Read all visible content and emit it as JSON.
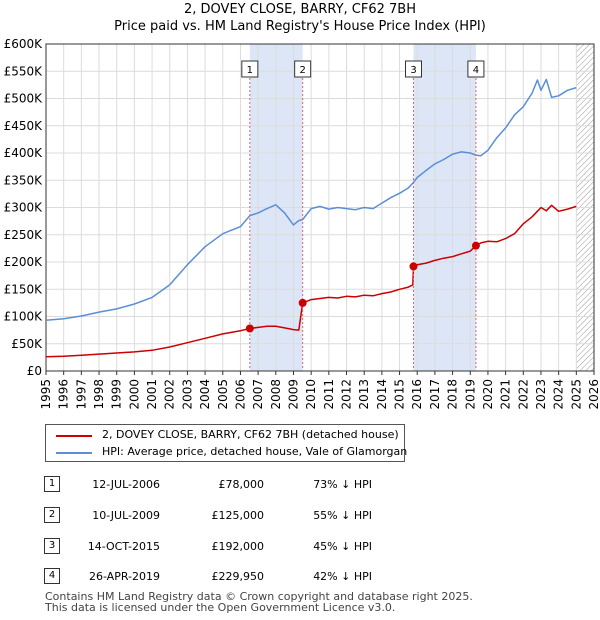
{
  "chart_data": {
    "type": "line",
    "title": "2, DOVEY CLOSE, BARRY, CF62 7BH",
    "subtitle": "Price paid vs. HM Land Registry's House Price Index (HPI)",
    "xlabel": "",
    "ylabel": "",
    "xlim": [
      1995,
      2026
    ],
    "ylim": [
      0,
      600000
    ],
    "x_ticks": [
      "1995",
      "1996",
      "1997",
      "1998",
      "1999",
      "2000",
      "2001",
      "2002",
      "2003",
      "2004",
      "2005",
      "2006",
      "2007",
      "2008",
      "2009",
      "2010",
      "2011",
      "2012",
      "2013",
      "2014",
      "2015",
      "2016",
      "2017",
      "2018",
      "2019",
      "2020",
      "2021",
      "2022",
      "2023",
      "2024",
      "2025",
      "2026"
    ],
    "y_ticks": [
      {
        "value": 0,
        "label": "£0"
      },
      {
        "value": 50000,
        "label": "£50K"
      },
      {
        "value": 100000,
        "label": "£100K"
      },
      {
        "value": 150000,
        "label": "£150K"
      },
      {
        "value": 200000,
        "label": "£200K"
      },
      {
        "value": 250000,
        "label": "£250K"
      },
      {
        "value": 300000,
        "label": "£300K"
      },
      {
        "value": 350000,
        "label": "£350K"
      },
      {
        "value": 400000,
        "label": "£400K"
      },
      {
        "value": 450000,
        "label": "£450K"
      },
      {
        "value": 500000,
        "label": "£500K"
      },
      {
        "value": 550000,
        "label": "£550K"
      },
      {
        "value": 600000,
        "label": "£600K"
      }
    ],
    "grid": true,
    "legend_position": "below",
    "shaded_ranges": [
      {
        "from": 2006.53,
        "to": 2009.52,
        "color": "#dce6f7"
      },
      {
        "from": 2015.79,
        "to": 2019.32,
        "color": "#dce6f7"
      }
    ],
    "hatched_from": 2025.0,
    "markers": [
      {
        "label": "1",
        "x": 2006.53
      },
      {
        "label": "2",
        "x": 2009.52
      },
      {
        "label": "3",
        "x": 2015.79
      },
      {
        "label": "4",
        "x": 2019.32
      }
    ],
    "series": [
      {
        "name": "2, DOVEY CLOSE, BARRY, CF62 7BH (detached house)",
        "color": "#cc0000",
        "x": [
          1995.0,
          1996.0,
          1997.0,
          1998.0,
          1999.0,
          2000.0,
          2001.0,
          2002.0,
          2003.0,
          2004.0,
          2005.0,
          2006.0,
          2006.53,
          2007.0,
          2007.5,
          2008.0,
          2008.5,
          2009.0,
          2009.3,
          2009.52,
          2010.0,
          2010.5,
          2011.0,
          2011.5,
          2012.0,
          2012.5,
          2013.0,
          2013.5,
          2014.0,
          2014.5,
          2015.0,
          2015.5,
          2015.75,
          2015.79,
          2016.0,
          2016.5,
          2017.0,
          2017.5,
          2018.0,
          2018.5,
          2019.0,
          2019.32,
          2019.6,
          2020.0,
          2020.5,
          2021.0,
          2021.5,
          2022.0,
          2022.5,
          2022.8,
          2023.0,
          2023.3,
          2023.6,
          2024.0,
          2024.5,
          2025.0
        ],
        "y": [
          26000,
          27000,
          29000,
          31000,
          33000,
          35000,
          38000,
          44000,
          52000,
          60000,
          68000,
          74000,
          78000,
          80000,
          82000,
          82000,
          79000,
          76000,
          75000,
          125000,
          131000,
          133000,
          135000,
          134000,
          137000,
          136000,
          139000,
          138000,
          142000,
          145000,
          150000,
          154000,
          158000,
          192000,
          195000,
          198000,
          203000,
          207000,
          210000,
          215000,
          220000,
          229950,
          235000,
          238000,
          237000,
          243000,
          252000,
          270000,
          283000,
          293000,
          300000,
          294000,
          304000,
          293000,
          297000,
          302000
        ]
      },
      {
        "name": "HPI: Average price, detached house, Vale of Glamorgan",
        "color": "#5b8ed6",
        "x": [
          1995.0,
          1996.0,
          1997.0,
          1998.0,
          1999.0,
          2000.0,
          2001.0,
          2002.0,
          2003.0,
          2004.0,
          2005.0,
          2006.0,
          2006.53,
          2007.0,
          2007.5,
          2008.0,
          2008.5,
          2009.0,
          2009.3,
          2009.52,
          2010.0,
          2010.5,
          2011.0,
          2011.5,
          2012.0,
          2012.5,
          2013.0,
          2013.5,
          2014.0,
          2014.5,
          2015.0,
          2015.5,
          2015.79,
          2016.0,
          2016.5,
          2017.0,
          2017.5,
          2018.0,
          2018.5,
          2019.0,
          2019.32,
          2019.6,
          2020.0,
          2020.5,
          2021.0,
          2021.5,
          2022.0,
          2022.5,
          2022.8,
          2023.0,
          2023.3,
          2023.6,
          2024.0,
          2024.5,
          2025.0
        ],
        "y": [
          93000,
          96000,
          101000,
          108000,
          114000,
          123000,
          135000,
          158000,
          195000,
          228000,
          252000,
          265000,
          285000,
          290000,
          298000,
          305000,
          290000,
          268000,
          276000,
          278000,
          298000,
          302000,
          297000,
          300000,
          298000,
          296000,
          300000,
          298000,
          308000,
          318000,
          326000,
          336000,
          346000,
          355000,
          368000,
          380000,
          388000,
          398000,
          402000,
          400000,
          396000,
          395000,
          405000,
          428000,
          446000,
          470000,
          485000,
          510000,
          534000,
          515000,
          535000,
          502000,
          505000,
          515000,
          520000
        ]
      }
    ]
  },
  "legend": [
    {
      "label": "2, DOVEY CLOSE, BARRY, CF62 7BH (detached house)",
      "color": "#cc0000"
    },
    {
      "label": "HPI: Average price, detached house, Vale of Glamorgan",
      "color": "#5b8ed6"
    }
  ],
  "transactions": [
    {
      "num": "1",
      "date": "12-JUL-2006",
      "price": "£78,000",
      "hpi": "73% ↓ HPI"
    },
    {
      "num": "2",
      "date": "10-JUL-2009",
      "price": "£125,000",
      "hpi": "55% ↓ HPI"
    },
    {
      "num": "3",
      "date": "14-OCT-2015",
      "price": "£192,000",
      "hpi": "45% ↓ HPI"
    },
    {
      "num": "4",
      "date": "26-APR-2019",
      "price": "£229,950",
      "hpi": "42% ↓ HPI"
    }
  ],
  "footer": {
    "line1": "Contains HM Land Registry data © Crown copyright and database right 2025.",
    "line2": "This data is licensed under the Open Government Licence v3.0."
  }
}
